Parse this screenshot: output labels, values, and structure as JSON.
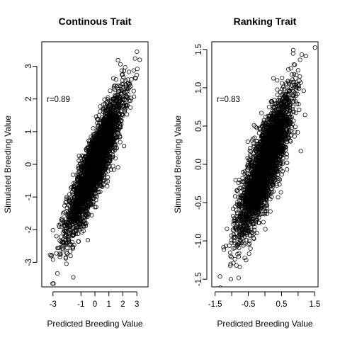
{
  "chart_data": [
    {
      "type": "scatter",
      "title": "Continous Trait",
      "xlabel": "Predicted Breeding Value",
      "ylabel": "Simulated Breeding Value",
      "annotation": "r=0.89",
      "r": 0.89,
      "n_points": 3000,
      "xlim": [
        -3.8,
        3.8
      ],
      "ylim": [
        -3.75,
        3.75
      ],
      "x_ticks": [
        -3,
        -1,
        0,
        1,
        2,
        3
      ],
      "x_tick_labels": [
        "-3",
        "-1",
        "0",
        "1",
        "2",
        "3"
      ],
      "y_ticks": [
        -3,
        -2,
        -1,
        0,
        1,
        2,
        3
      ],
      "y_tick_labels": [
        "-3",
        "-2",
        "-1",
        "0",
        "1",
        "2",
        "3"
      ],
      "x_sd": 1.0,
      "y_sd": 1.05,
      "grid": false,
      "legend": "none"
    },
    {
      "type": "scatter",
      "title": "Ranking Trait",
      "xlabel": "Predicted Breeding Value",
      "ylabel": "Simulated Breeding Value",
      "annotation": "r=0.83",
      "r": 0.83,
      "n_points": 3000,
      "xlim": [
        -1.6,
        1.6
      ],
      "ylim": [
        -1.6,
        1.6
      ],
      "x_ticks": [
        -1.5,
        -0.5,
        0.5,
        1.5
      ],
      "x_tick_labels": [
        "-1.5",
        "-0.5",
        "0.5",
        "1.5"
      ],
      "x_minor_ticks": [
        -1.0,
        0.0,
        1.0
      ],
      "y_ticks": [
        -1.5,
        -1.0,
        -0.5,
        0.0,
        0.5,
        1.0,
        1.5
      ],
      "y_tick_labels": [
        "-1.5",
        "-1.0",
        "-0.5",
        "0.0",
        "0.5",
        "1.0",
        "1.5"
      ],
      "x_sd": 0.4,
      "y_sd": 0.45,
      "grid": false,
      "legend": "none"
    }
  ]
}
